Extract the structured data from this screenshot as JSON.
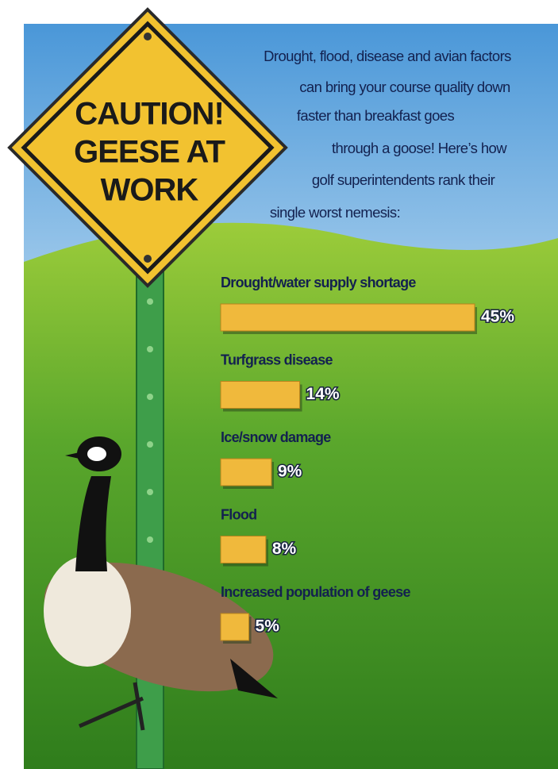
{
  "chart_data": {
    "type": "bar",
    "orientation": "horizontal",
    "sign_text": [
      "CAUTION!",
      "GEESE AT",
      "WORK"
    ],
    "subtitle": [
      "Drought, flood, disease and avian factors",
      "can bring your course quality down",
      "faster than breakfast goes",
      "through a goose! Here’s how",
      "golf superintendents rank their",
      "single worst nemesis:"
    ],
    "categories": [
      "Drought/water supply shortage",
      "Turfgrass disease",
      "Ice/snow damage",
      "Flood",
      "Increased population of geese"
    ],
    "values": [
      45,
      14,
      9,
      8,
      5
    ],
    "value_labels": [
      "45%",
      "14%",
      "9%",
      "8%",
      "5%"
    ],
    "color": "#f0b93c",
    "xlim": [
      0,
      45
    ]
  }
}
